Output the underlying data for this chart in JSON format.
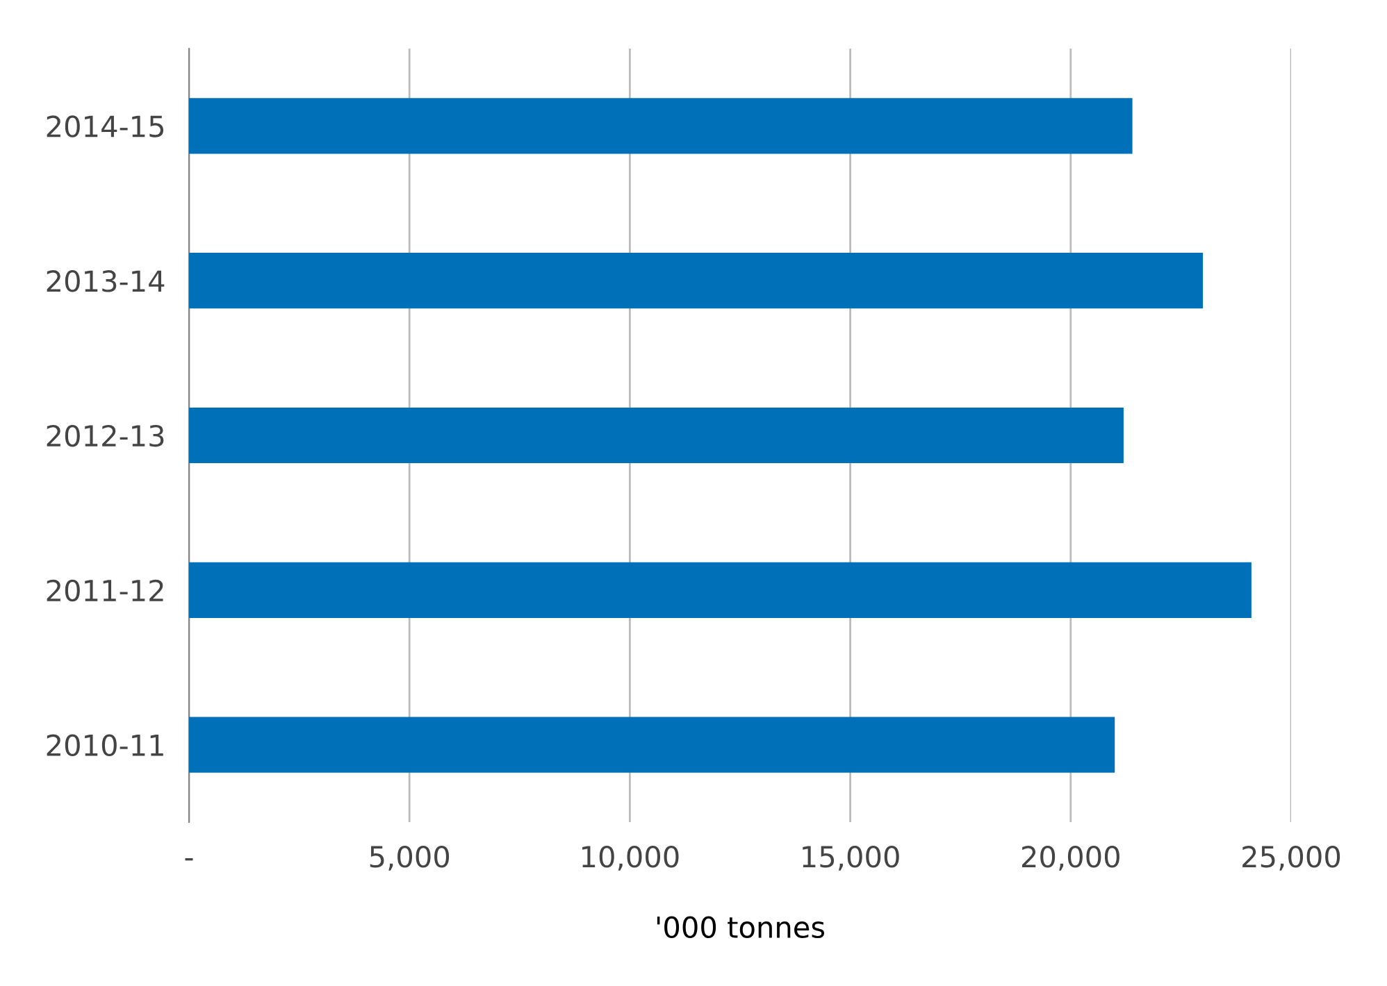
{
  "chart_data": {
    "type": "bar",
    "orientation": "horizontal",
    "categories": [
      "2014-15",
      "2013-14",
      "2012-13",
      "2011-12",
      "2010-11"
    ],
    "values": [
      21400,
      23000,
      21200,
      24100,
      21000
    ],
    "color": "#0070b8",
    "xlabel": "'000 tonnes",
    "xlim": [
      0,
      25000
    ],
    "xticks": [
      {
        "value": 0,
        "label": "-"
      },
      {
        "value": 5000,
        "label": "5,000"
      },
      {
        "value": 10000,
        "label": "10,000"
      },
      {
        "value": 15000,
        "label": "15,000"
      },
      {
        "value": 20000,
        "label": "20,000"
      },
      {
        "value": 25000,
        "label": "25,000"
      }
    ],
    "grid": "x",
    "legend": false
  }
}
